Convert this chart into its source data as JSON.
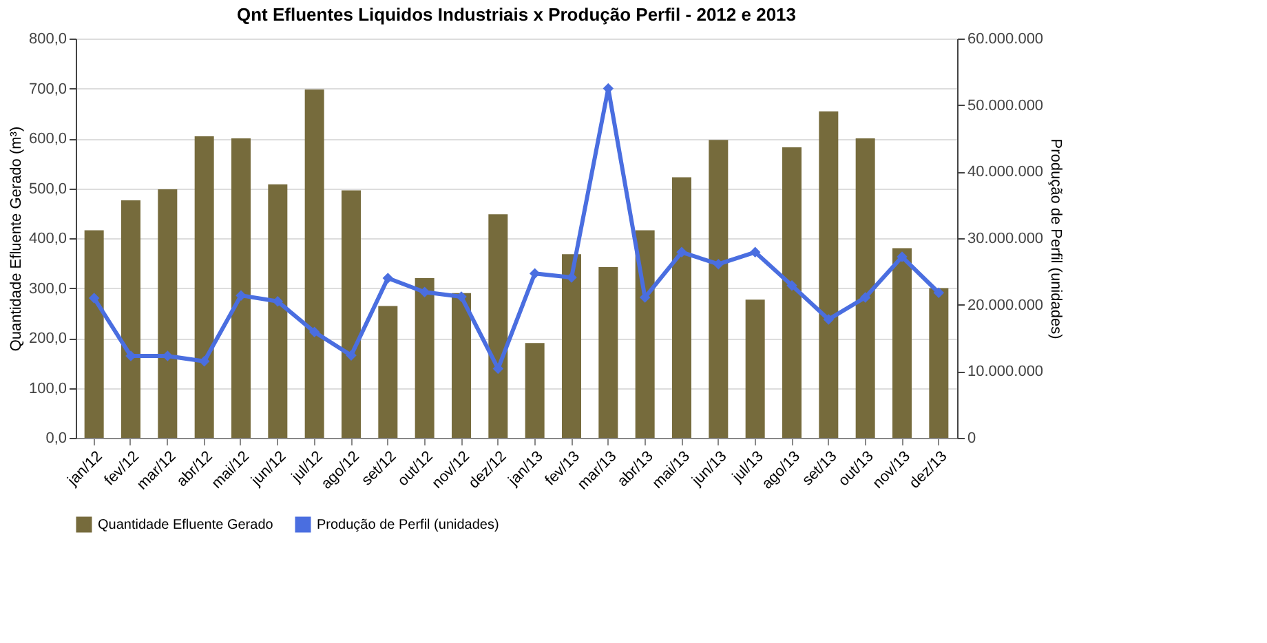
{
  "chart_data": {
    "type": "bar",
    "title": "Qnt Efluentes Liquidos Industriais x Produção Perfil - 2012 e 2013",
    "ylabel": "Quantidade Efluente Gerado (m³)",
    "y2label": "Produção de Perfil (unidades)",
    "categories": [
      "jan/12",
      "fev/12",
      "mar/12",
      "abr/12",
      "mai/12",
      "jun/12",
      "jul/12",
      "ago/12",
      "set/12",
      "out/12",
      "nov/12",
      "dez/12",
      "jan/13",
      "fev/13",
      "mar/13",
      "abr/13",
      "mai/13",
      "jun/13",
      "jul/13",
      "ago/13",
      "set/13",
      "out/13",
      "nov/13",
      "dez/13"
    ],
    "series": [
      {
        "name": "Quantidade  Efluente Gerado",
        "color": "#766b3c",
        "values": [
          416,
          476,
          498,
          604,
          600,
          508,
          698,
          496,
          264,
          320,
          290,
          448,
          190,
          368,
          342,
          416,
          522,
          597,
          277,
          582,
          654,
          600,
          380,
          300
        ]
      },
      {
        "name": "Produção de Perfil (unidades)",
        "type": "line",
        "axis": "y2",
        "color": "#4a6ee0",
        "marker": "diamond",
        "values": [
          21000000,
          12300000,
          12300000,
          11500000,
          21400000,
          20500000,
          15900000,
          12400000,
          24000000,
          21900000,
          21200000,
          10400000,
          24700000,
          24100000,
          52500000,
          21100000,
          27900000,
          26100000,
          27900000,
          22900000,
          17800000,
          21100000,
          27200000,
          21800000
        ]
      }
    ],
    "ylim": [
      0,
      800
    ],
    "yticks": [
      {
        "value": 0,
        "label": "0,0"
      },
      {
        "value": 100,
        "label": "100,0"
      },
      {
        "value": 200,
        "label": "200,0"
      },
      {
        "value": 300,
        "label": "300,0"
      },
      {
        "value": 400,
        "label": "400,0"
      },
      {
        "value": 500,
        "label": "500,0"
      },
      {
        "value": 600,
        "label": "600,0"
      },
      {
        "value": 700,
        "label": "700,0"
      },
      {
        "value": 800,
        "label": "800,0"
      }
    ],
    "y2lim": [
      0,
      60000000
    ],
    "y2ticks": [
      0,
      {
        "value": 10000000,
        "label": "10.000.000"
      },
      {
        "value": 20000000,
        "label": "20.000.000"
      },
      {
        "value": 30000000,
        "label": "30.000.000"
      },
      {
        "value": 40000000,
        "label": "40.000.000"
      },
      {
        "value": 50000000,
        "label": "50.000.000"
      },
      {
        "value": 60000000,
        "label": "60.000.000"
      }
    ],
    "grid": "y",
    "legend": "bottom"
  }
}
